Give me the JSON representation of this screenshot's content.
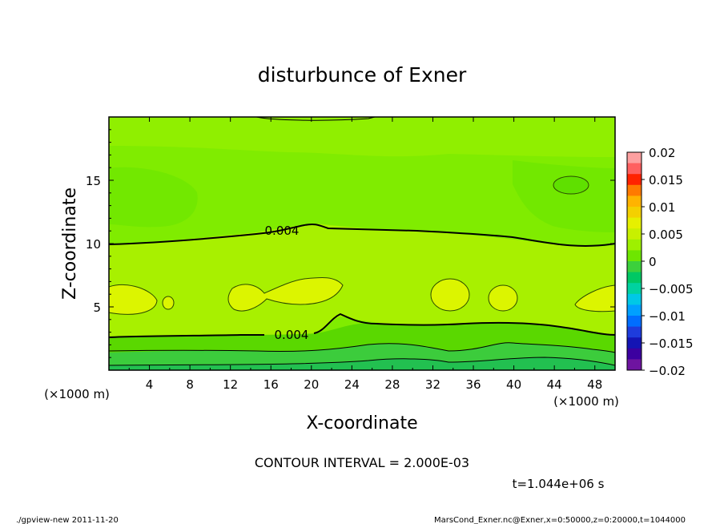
{
  "chart_data": {
    "type": "heatmap",
    "title": "disturbunce of Exner",
    "xlabel": "X-coordinate",
    "ylabel": "Z-coordinate",
    "x_unit": "(×1000 m)",
    "y_unit": "(×1000 m)",
    "x_ticks": [
      "4",
      "8",
      "12",
      "16",
      "20",
      "24",
      "28",
      "32",
      "36",
      "40",
      "44",
      "48"
    ],
    "y_ticks": [
      "5",
      "10",
      "15"
    ],
    "x_range": [
      0,
      50
    ],
    "y_range": [
      0,
      20
    ],
    "colorbar": {
      "ticks": [
        "0.02",
        "0.015",
        "0.01",
        "0.005",
        "0",
        "−0.005",
        "−0.01",
        "−0.015",
        "−0.02"
      ],
      "range": [
        -0.02,
        0.02
      ],
      "colors": [
        "#fda0a0",
        "#ff6060",
        "#ff2200",
        "#ff7a00",
        "#ffb300",
        "#f4d000",
        "#e6f000",
        "#c8f000",
        "#9ef000",
        "#6ee600",
        "#3cd03c",
        "#00c864",
        "#00d2a0",
        "#00c8e6",
        "#00a0ff",
        "#006eff",
        "#1e3cdc",
        "#1414b4",
        "#3c00a0",
        "#6e14a0"
      ]
    },
    "contour_labels": [
      "0.004",
      "0.004"
    ],
    "contour_interval": "CONTOUR INTERVAL = 2.000E-03",
    "time_label": "t=1.044e+06 s",
    "grid": false,
    "legend": "right"
  },
  "footer": {
    "left": "./gpview-new   2011-11-20",
    "right": "MarsCond_Exner.nc@Exner,x=0:50000,z=0:20000,t=1044000"
  }
}
